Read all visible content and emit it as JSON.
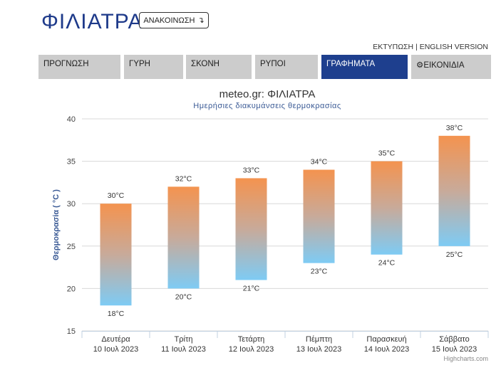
{
  "header": {
    "site_title": "ΦΙΛΙΑΤΡΑ",
    "announce_label": "ΑΝΑΚΟΙΝΩΣΗ",
    "announce_icon": "arrow-down-icon",
    "print_link": "ΕΚΤΥΠΩΣΗ",
    "separator": "|",
    "english_link": "ENGLISH VERSION"
  },
  "nav": {
    "tabs": [
      {
        "label": "ΠΡΟΓΝΩΣΗ"
      },
      {
        "label": "ΓΥΡΗ"
      },
      {
        "label": "ΣΚΟΝΗ"
      },
      {
        "label": "ΡΥΠΟΙ"
      },
      {
        "label": "ΓΡΑΦΗΜΑΤΑ",
        "active": true
      },
      {
        "label": "ΕΙΚΟΝΙΔΙΑ",
        "icon": "gear-icon"
      }
    ]
  },
  "colors": {
    "accent": "#1e3f8e",
    "bar_top": "#f4934f",
    "bar_bottom": "#7ecbf4",
    "tab_bg": "#cccccc"
  },
  "chart_data": {
    "type": "bar",
    "title": "meteo.gr: ΦΙΛΙΑΤΡΑ",
    "subtitle": "Ημερήσιες διακυμάνσεις θερμοκρασίας",
    "ylabel": "Θερμοκρασία ( °C )",
    "xlabel": "",
    "ylim": [
      15,
      40
    ],
    "yticks": [
      15,
      20,
      25,
      30,
      35,
      40
    ],
    "grid": true,
    "categories": [
      [
        "Δευτέρα",
        "10 Ιουλ 2023"
      ],
      [
        "Τρίτη",
        "11 Ιουλ 2023"
      ],
      [
        "Τετάρτη",
        "12 Ιουλ 2023"
      ],
      [
        "Πέμπτη",
        "13 Ιουλ 2023"
      ],
      [
        "Παρασκευή",
        "14 Ιουλ 2023"
      ],
      [
        "Σάββατο",
        "15 Ιουλ 2023"
      ]
    ],
    "high": [
      30,
      32,
      33,
      34,
      35,
      38
    ],
    "low": [
      18,
      20,
      21,
      23,
      24,
      25
    ],
    "unit": "°C",
    "credits": "Highcharts.com"
  }
}
